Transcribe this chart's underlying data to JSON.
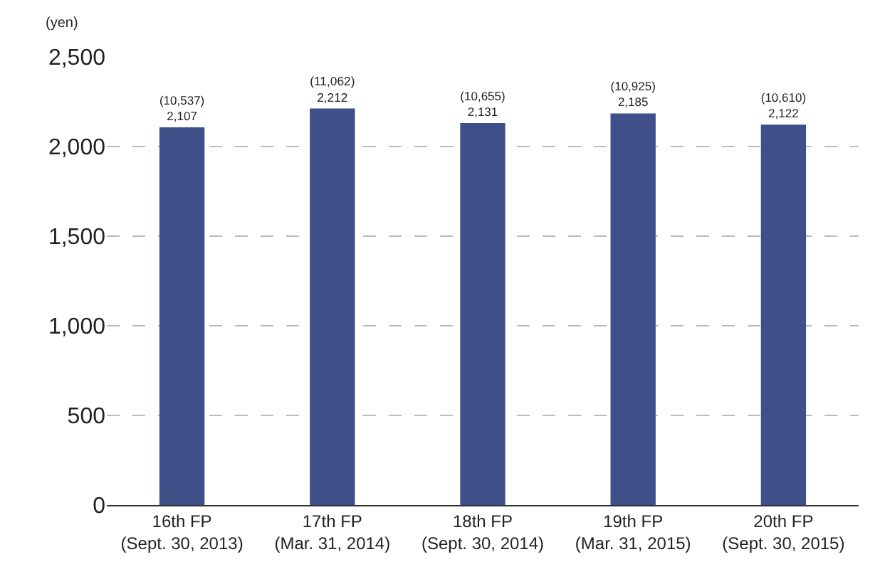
{
  "chart_data": {
    "type": "bar",
    "ylabel": "(yen)",
    "categories": [
      "16th FP\n(Sept. 30, 2013)",
      "17th FP\n(Mar. 31, 2014)",
      "18th FP\n(Sept. 30, 2014)",
      "19th FP\n(Mar. 31, 2015)",
      "20th FP\n(Sept. 30, 2015)"
    ],
    "values": [
      2107,
      2212,
      2131,
      2185,
      2122
    ],
    "value_labels": [
      "(10,537)\n2,107",
      "(11,062)\n2,212",
      "(10,655)\n2,131",
      "(10,925)\n2,185",
      "(10,610)\n2,122"
    ],
    "color": "#3f5089",
    "ylim": [
      0,
      2500
    ],
    "yticks": [
      {
        "value": 0,
        "label": "0"
      },
      {
        "value": 500,
        "label": "500"
      },
      {
        "value": 1000,
        "label": "1,000"
      },
      {
        "value": 1500,
        "label": "1,500"
      },
      {
        "value": 2000,
        "label": "2,000"
      },
      {
        "value": 2500,
        "label": "2,500"
      }
    ],
    "grid": "y",
    "legend": false
  }
}
